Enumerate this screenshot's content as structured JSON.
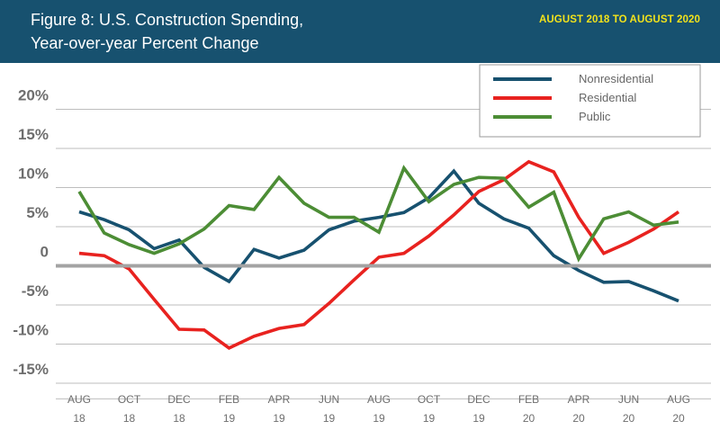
{
  "header": {
    "title_line1": "Figure 8: U.S. Construction Spending,",
    "title_line2": "Year-over-year Percent Change",
    "date_range": "AUGUST 2018 TO AUGUST 2020"
  },
  "colors": {
    "header_bg": "#17516f",
    "date_range_text": "#f2e21b",
    "Nonresidential": "#17516f",
    "Residential": "#e8221f",
    "Public": "#4c8d35"
  },
  "chart_data": {
    "type": "line",
    "title": "Figure 8: U.S. Construction Spending, Year-over-year Percent Change",
    "subtitle": "AUGUST 2018 TO AUGUST 2020",
    "ylim": [
      -17,
      22
    ],
    "yticks": [
      20,
      15,
      10,
      5,
      0,
      -5,
      -10,
      -15
    ],
    "ytick_labels": [
      "20%",
      "15%",
      "10%",
      "5%",
      "0",
      "-5%",
      "-10%",
      "-15%"
    ],
    "grid": "horizontal",
    "zero_line": true,
    "legend_position": "top-right",
    "x_labels": [
      [
        "AUG",
        "18"
      ],
      [
        "OCT",
        "18"
      ],
      [
        "DEC",
        "18"
      ],
      [
        "FEB",
        "19"
      ],
      [
        "APR",
        "19"
      ],
      [
        "JUN",
        "19"
      ],
      [
        "AUG",
        "19"
      ],
      [
        "OCT",
        "19"
      ],
      [
        "DEC",
        "19"
      ],
      [
        "FEB",
        "20"
      ],
      [
        "APR",
        "20"
      ],
      [
        "JUN",
        "20"
      ],
      [
        "AUG",
        "20"
      ]
    ],
    "x": [
      "Aug 2018",
      "Sep 2018",
      "Oct 2018",
      "Nov 2018",
      "Dec 2018",
      "Jan 2019",
      "Feb 2019",
      "Mar 2019",
      "Apr 2019",
      "May 2019",
      "Jun 2019",
      "Jul 2019",
      "Aug 2019",
      "Sep 2019",
      "Oct 2019",
      "Nov 2019",
      "Dec 2019",
      "Jan 2020",
      "Feb 2020",
      "Mar 2020",
      "Apr 2020",
      "May 2020",
      "Jun 2020",
      "Jul 2020",
      "Aug 2020"
    ],
    "series": [
      {
        "name": "Nonresidential",
        "values": [
          6.9,
          5.9,
          4.6,
          2.2,
          3.3,
          -0.2,
          -2.0,
          2.1,
          1.0,
          2.0,
          4.6,
          5.7,
          6.2,
          6.8,
          8.7,
          12.1,
          8.0,
          6.0,
          4.8,
          1.3,
          -0.6,
          -2.1,
          -2.0,
          -3.2,
          -4.5
        ]
      },
      {
        "name": "Residential",
        "values": [
          1.6,
          1.3,
          -0.4,
          -4.3,
          -8.1,
          -8.2,
          -10.5,
          -9.0,
          -8.0,
          -7.5,
          -4.8,
          -1.8,
          1.1,
          1.6,
          3.8,
          6.5,
          9.5,
          11.0,
          13.3,
          12.0,
          6.2,
          1.6,
          3.0,
          4.7,
          6.9
        ]
      },
      {
        "name": "Public",
        "values": [
          9.5,
          4.2,
          2.7,
          1.6,
          2.8,
          4.7,
          7.7,
          7.2,
          11.3,
          8.0,
          6.2,
          6.2,
          4.3,
          12.5,
          8.2,
          10.4,
          11.3,
          11.2,
          7.5,
          9.4,
          0.9,
          6.0,
          6.9,
          5.2,
          5.6
        ]
      }
    ]
  }
}
